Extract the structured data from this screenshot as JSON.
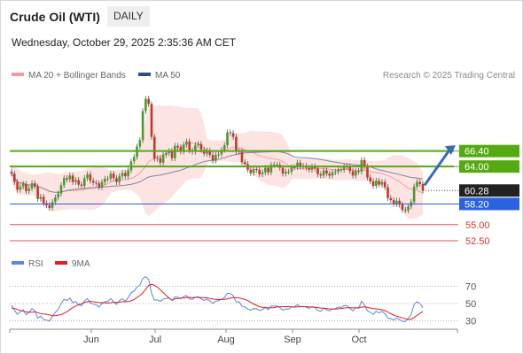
{
  "header": {
    "title": "Crude Oil (WTI)",
    "timeframe": "DAILY"
  },
  "date_label": "Wednesday, October 29, 2025 2:35:36 AM CET",
  "legend": {
    "bb_label": "MA 20 + Bollinger Bands",
    "ma50_label": "MA 50",
    "rsi_label": "RSI",
    "ma9_label": "9MA",
    "credit": "Research © 2025 Trading Central"
  },
  "colors": {
    "up": "#4a9a2c",
    "down": "#c0392b",
    "band": "#fde4e2",
    "ma20": "#f0a0a0",
    "ma50": "#7a87a8",
    "resistance": "#55aa11",
    "support": "#2a62e0",
    "target": "#e05050",
    "rsi": "#5b86e6",
    "ma9": "#e02020",
    "arrow": "#3a6ab0",
    "price_box": "#222222"
  },
  "chart_data": [
    {
      "type": "candlestick",
      "title": "Crude Oil (WTI)",
      "timeframe": "DAILY",
      "x_tick_labels": [
        "Jun",
        "Jul",
        "Aug",
        "Sep",
        "Oct"
      ],
      "ylim": [
        52.5,
        75.0
      ],
      "last_price": 60.28,
      "levels": [
        {
          "label": "66.40",
          "value": 66.4,
          "kind": "resistance"
        },
        {
          "label": "64.00",
          "value": 64.0,
          "kind": "resistance"
        },
        {
          "label": "58.20",
          "value": 58.2,
          "kind": "support"
        },
        {
          "label": "55.00",
          "value": 55.0,
          "kind": "target"
        },
        {
          "label": "52.50",
          "value": 52.5,
          "kind": "target"
        }
      ],
      "price_label": "60.28",
      "close": [
        62.9,
        61.6,
        60.4,
        60.9,
        61.3,
        60.2,
        60.6,
        61.4,
        60.9,
        59.0,
        59.3,
        58.3,
        58.0,
        57.6,
        58.5,
        59.2,
        59.8,
        61.1,
        62.2,
        62.0,
        62.6,
        61.6,
        61.9,
        61.2,
        61.0,
        62.2,
        62.8,
        61.8,
        61.5,
        61.4,
        60.8,
        61.6,
        62.1,
        62.1,
        62.9,
        62.2,
        61.6,
        62.5,
        63.0,
        62.5,
        63.4,
        64.8,
        65.5,
        67.1,
        68.1,
        72.6,
        74.5,
        73.7,
        68.6,
        65.2,
        65.3,
        64.6,
        65.8,
        66.1,
        66.4,
        65.3,
        67.2,
        67.0,
        66.3,
        67.4,
        67.9,
        66.5,
        66.3,
        67.3,
        67.5,
        66.6,
        66.0,
        66.5,
        65.8,
        64.9,
        65.8,
        65.9,
        66.6,
        67.3,
        69.3,
        69.2,
        68.6,
        66.3,
        66.4,
        64.7,
        64.4,
        63.5,
        63.0,
        63.6,
        63.5,
        62.8,
        63.1,
        63.8,
        63.1,
        64.3,
        64.3,
        64.3,
        63.8,
        62.9,
        63.2,
        63.2,
        63.9,
        63.9,
        64.6,
        64.0,
        64.1,
        63.8,
        63.5,
        64.0,
        63.7,
        62.8,
        62.6,
        63.4,
        62.9,
        62.6,
        63.1,
        63.2,
        63.6,
        63.5,
        64.0,
        64.0,
        63.3,
        62.6,
        63.3,
        63.2,
        65.0,
        64.0,
        62.3,
        61.7,
        61.0,
        61.8,
        61.2,
        61.6,
        60.8,
        59.1,
        58.8,
        58.2,
        58.7,
        58.1,
        57.3,
        57.2,
        57.8,
        58.5,
        60.9,
        61.6,
        61.3,
        60.28
      ]
    },
    {
      "type": "line",
      "title": "RSI",
      "series": [
        {
          "name": "RSI",
          "values": [
            48.0,
            42.0,
            37.5,
            40.4,
            42.8,
            36.9,
            39.4,
            44.1,
            41.7,
            32.9,
            35.3,
            31.6,
            30.6,
            29.3,
            35.4,
            39.6,
            43.1,
            49.8,
            54.9,
            53.6,
            56.5,
            50.9,
            52.3,
            48.5,
            47.4,
            53.2,
            56.0,
            50.7,
            49.2,
            48.7,
            45.6,
            49.9,
            52.3,
            52.3,
            55.9,
            52.0,
            49.0,
            53.4,
            55.6,
            52.9,
            56.9,
            62.4,
            64.7,
            69.2,
            71.6,
            79.3,
            81.3,
            78.3,
            62.1,
            54.0,
            54.2,
            52.6,
            55.2,
            55.9,
            56.6,
            53.7,
            57.9,
            57.4,
            55.4,
            58.1,
            59.3,
            55.4,
            54.8,
            57.3,
            57.8,
            55.3,
            53.6,
            55.0,
            52.9,
            50.3,
            52.9,
            53.2,
            55.1,
            57.0,
            61.9,
            61.6,
            59.4,
            51.8,
            52.1,
            46.9,
            46.0,
            43.4,
            42.1,
            44.2,
            43.9,
            41.7,
            42.8,
            45.3,
            42.9,
            47.1,
            47.1,
            47.1,
            45.3,
            42.3,
            43.5,
            43.5,
            46.1,
            46.1,
            48.6,
            46.3,
            46.7,
            45.6,
            44.4,
            46.5,
            45.4,
            41.8,
            41.0,
            44.6,
            42.6,
            41.4,
            43.6,
            44.1,
            45.8,
            45.4,
            47.5,
            47.5,
            44.4,
            41.4,
            44.9,
            44.5,
            52.7,
            48.3,
            41.7,
            39.6,
            37.3,
            41.1,
            39.1,
            40.9,
            38.2,
            33.1,
            32.3,
            30.7,
            33.0,
            31.3,
            29.2,
            29.0,
            32.6,
            36.8,
            48.9,
            52.0,
            50.1,
            45.0
          ]
        },
        {
          "name": "9MA",
          "values": [
            45.0,
            44.1,
            43.0,
            41.9,
            41.0,
            40.3,
            39.8,
            39.9,
            40.3,
            39.3,
            38.4,
            37.8,
            37.5,
            36.8,
            35.7,
            35.9,
            36.4,
            37.2,
            38.7,
            40.3,
            42.9,
            45.3,
            47.1,
            48.6,
            49.9,
            51.1,
            52.2,
            52.4,
            52.1,
            51.6,
            51.2,
            50.9,
            50.9,
            50.6,
            50.9,
            51.4,
            51.3,
            51.7,
            52.0,
            52.0,
            52.3,
            53.1,
            54.7,
            57.0,
            59.3,
            62.4,
            66.6,
            70.9,
            72.6,
            71.4,
            69.1,
            66.0,
            62.8,
            59.6,
            56.4,
            53.8,
            55.4,
            56.0,
            56.3,
            56.5,
            57.0,
            57.2,
            57.0,
            57.2,
            57.1,
            56.9,
            56.7,
            56.7,
            55.9,
            55.2,
            54.9,
            54.6,
            54.7,
            54.8,
            55.5,
            56.3,
            57.0,
            56.7,
            56.4,
            55.7,
            54.9,
            53.4,
            51.3,
            49.4,
            47.9,
            46.2,
            45.6,
            45.4,
            44.9,
            45.0,
            45.2,
            45.9,
            46.4,
            46.3,
            46.3,
            46.5,
            46.1,
            45.8,
            46.1,
            46.2,
            46.4,
            46.3,
            46.0,
            45.8,
            45.5,
            45.2,
            44.8,
            44.5,
            44.2,
            43.8,
            43.6,
            43.5,
            43.9,
            44.2,
            44.7,
            45.0,
            45.1,
            44.9,
            44.9,
            45.1,
            45.9,
            46.0,
            45.5,
            44.8,
            44.1,
            43.7,
            43.2,
            42.7,
            41.7,
            40.0,
            38.1,
            36.5,
            35.2,
            34.3,
            33.2,
            32.2,
            31.6,
            31.7,
            33.7,
            36.1,
            38.5,
            40.6
          ]
        }
      ],
      "ylim": [
        20,
        82
      ],
      "y_tick_labels": [
        "70",
        "50",
        "30"
      ],
      "x_tick_labels": [
        "Jun",
        "Jul",
        "Aug",
        "Sep",
        "Oct"
      ]
    }
  ]
}
